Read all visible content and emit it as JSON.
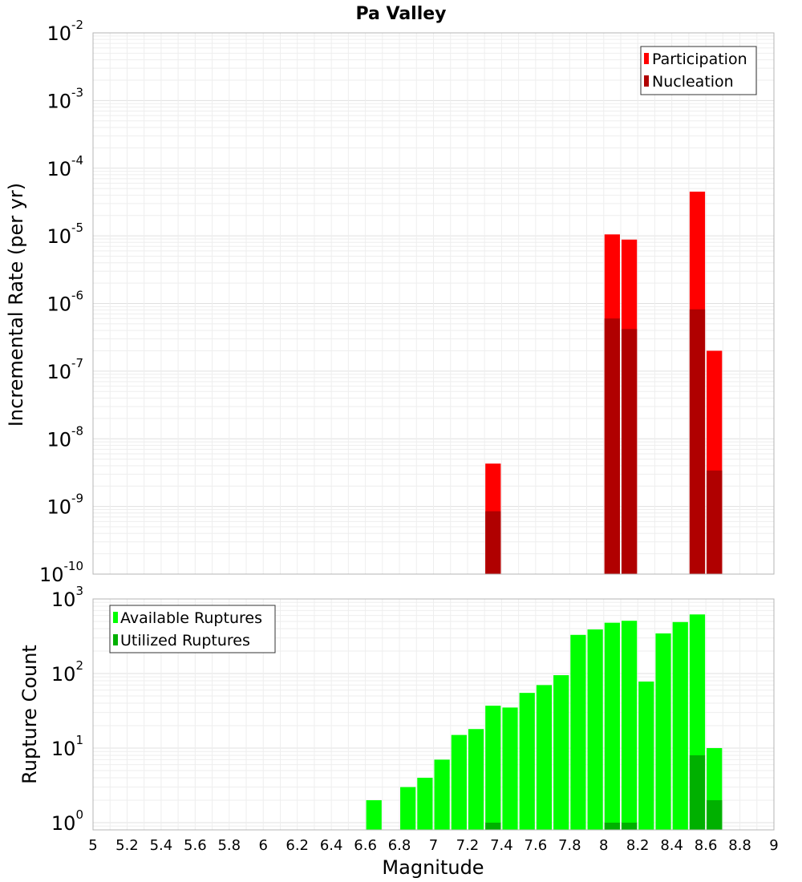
{
  "chart_data": [
    {
      "type": "bar",
      "title": "Pa Valley",
      "xlabel": "",
      "ylabel": "Incremental Rate (per yr)",
      "xlim": [
        5,
        9
      ],
      "ylim": [
        1e-10,
        0.01
      ],
      "yscale": "log",
      "yticks": [
        {
          "base": "10",
          "exp": "-10"
        },
        {
          "base": "10",
          "exp": "-9"
        },
        {
          "base": "10",
          "exp": "-8"
        },
        {
          "base": "10",
          "exp": "-7"
        },
        {
          "base": "10",
          "exp": "-6"
        },
        {
          "base": "10",
          "exp": "-5"
        },
        {
          "base": "10",
          "exp": "-4"
        },
        {
          "base": "10",
          "exp": "-3"
        },
        {
          "base": "10",
          "exp": "-2"
        }
      ],
      "grid": true,
      "legend_position": "top-right",
      "series": [
        {
          "name": "Participation",
          "color": "#ff0000",
          "points": [
            [
              7.35,
              4.3e-09
            ],
            [
              8.05,
              1.05e-05
            ],
            [
              8.15,
              8.8e-06
            ],
            [
              8.55,
              4.5e-05
            ],
            [
              8.65,
              2e-07
            ]
          ]
        },
        {
          "name": "Nucleation",
          "color": "#b00000",
          "points": [
            [
              7.35,
              8.5e-10
            ],
            [
              8.05,
              6e-07
            ],
            [
              8.15,
              4.2e-07
            ],
            [
              8.55,
              8.2e-07
            ],
            [
              8.65,
              3.4e-09
            ]
          ]
        }
      ]
    },
    {
      "type": "bar",
      "title": "",
      "xlabel": "Magnitude",
      "ylabel": "Rupture Count",
      "xlim": [
        5,
        9
      ],
      "ylim": [
        0.8,
        1000
      ],
      "yscale": "log",
      "yticks": [
        {
          "value": 1,
          "base": "10",
          "exp": "0"
        },
        {
          "value": 10,
          "base": "10",
          "exp": "1"
        },
        {
          "value": 100,
          "base": "10",
          "exp": "2"
        },
        {
          "value": 1000,
          "base": "10",
          "exp": "3"
        }
      ],
      "xticks": [
        "5",
        "5.2",
        "5.4",
        "5.6",
        "5.8",
        "6",
        "6.2",
        "6.4",
        "6.6",
        "6.8",
        "7",
        "7.2",
        "7.4",
        "7.6",
        "7.8",
        "8",
        "8.2",
        "8.4",
        "8.6",
        "8.8",
        "9"
      ],
      "grid": true,
      "legend_position": "top-left",
      "series": [
        {
          "name": "Available Ruptures",
          "color": "#00ff00",
          "points": [
            [
              6.65,
              2
            ],
            [
              6.85,
              3
            ],
            [
              6.95,
              4
            ],
            [
              7.05,
              7
            ],
            [
              7.15,
              15
            ],
            [
              7.25,
              18
            ],
            [
              7.35,
              37
            ],
            [
              7.45,
              35
            ],
            [
              7.55,
              55
            ],
            [
              7.65,
              70
            ],
            [
              7.75,
              95
            ],
            [
              7.85,
              330
            ],
            [
              7.95,
              390
            ],
            [
              8.05,
              480
            ],
            [
              8.15,
              510
            ],
            [
              8.25,
              78
            ],
            [
              8.35,
              345
            ],
            [
              8.45,
              490
            ],
            [
              8.55,
              620
            ],
            [
              8.65,
              10
            ]
          ]
        },
        {
          "name": "Utilized Ruptures",
          "color": "#00b000",
          "points": [
            [
              7.35,
              1
            ],
            [
              8.05,
              1
            ],
            [
              8.15,
              1
            ],
            [
              8.55,
              8
            ],
            [
              8.65,
              2
            ]
          ]
        }
      ]
    }
  ]
}
